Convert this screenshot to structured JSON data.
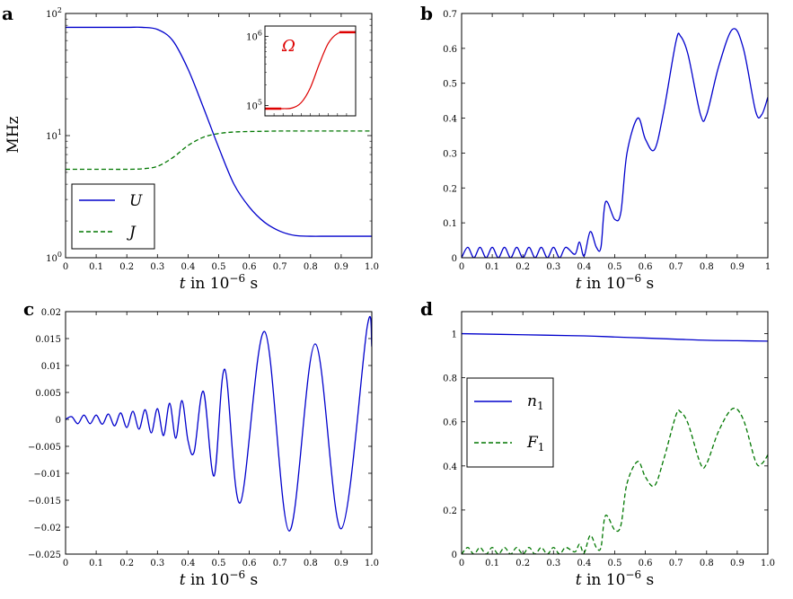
{
  "x_axis_label": "t in 10",
  "x_axis_exp": "−6",
  "x_axis_unit": " s",
  "chart_data": [
    {
      "panel": "a",
      "type": "line",
      "yscale": "log",
      "ylabel": "MHz",
      "xlim": [
        0,
        1.0
      ],
      "ylim": [
        1,
        100
      ],
      "xticks": [
        "0",
        "0.1",
        "0.2",
        "0.3",
        "0.4",
        "0.5",
        "0.6",
        "0.7",
        "0.8",
        "0.9",
        "1.0"
      ],
      "yticks": [
        {
          "base": "10",
          "exp": "0",
          "value": 1
        },
        {
          "base": "10",
          "exp": "1",
          "value": 10
        },
        {
          "base": "10",
          "exp": "2",
          "value": 100
        }
      ],
      "series": [
        {
          "name": "U",
          "color": "#0000cc",
          "style": "solid",
          "x": [
            0,
            0.1,
            0.2,
            0.25,
            0.3,
            0.35,
            0.4,
            0.45,
            0.5,
            0.55,
            0.6,
            0.65,
            0.7,
            0.75,
            0.8,
            0.85,
            0.9,
            0.95,
            1.0
          ],
          "y": [
            77,
            77,
            77,
            77,
            74,
            60,
            35,
            17,
            8,
            4,
            2.6,
            1.95,
            1.65,
            1.52,
            1.5,
            1.5,
            1.5,
            1.5,
            1.5
          ]
        },
        {
          "name": "J",
          "color": "#007700",
          "style": "dashed",
          "x": [
            0,
            0.1,
            0.2,
            0.25,
            0.3,
            0.35,
            0.4,
            0.45,
            0.5,
            0.55,
            0.6,
            0.65,
            0.7,
            0.8,
            0.9,
            1.0
          ],
          "y": [
            5.3,
            5.3,
            5.3,
            5.35,
            5.6,
            6.6,
            8.3,
            9.7,
            10.4,
            10.7,
            10.8,
            10.85,
            10.9,
            10.9,
            10.9,
            10.9
          ]
        }
      ],
      "legend": "lower-left",
      "inset": {
        "label": "Ω",
        "color": "#dd0000",
        "yticks": [
          {
            "base": "10",
            "exp": "5"
          },
          {
            "base": "10",
            "exp": "6"
          }
        ],
        "x": [
          0,
          0.2,
          0.3,
          0.4,
          0.5,
          0.6,
          0.7,
          0.8,
          0.9,
          1.0
        ],
        "y": [
          90000,
          90000,
          92000,
          110000,
          180000,
          400000,
          800000,
          1100000,
          1150000,
          1150000
        ]
      }
    },
    {
      "panel": "b",
      "type": "line",
      "xlim": [
        0,
        1.0
      ],
      "ylim": [
        0,
        0.7
      ],
      "xticks": [
        "0",
        "0.1",
        "0.2",
        "0.3",
        "0.4",
        "0.5",
        "0.6",
        "0.7",
        "0.8",
        "0.9",
        "1"
      ],
      "yticks": [
        "0",
        "0.1",
        "0.2",
        "0.3",
        "0.4",
        "0.5",
        "0.6",
        "0.7"
      ],
      "series": [
        {
          "color": "#0000cc",
          "style": "solid",
          "x": [
            0,
            0.02,
            0.04,
            0.06,
            0.08,
            0.1,
            0.12,
            0.14,
            0.16,
            0.18,
            0.2,
            0.22,
            0.24,
            0.26,
            0.28,
            0.3,
            0.32,
            0.34,
            0.37,
            0.385,
            0.4,
            0.42,
            0.44,
            0.455,
            0.47,
            0.5,
            0.52,
            0.54,
            0.575,
            0.6,
            0.63,
            0.66,
            0.7,
            0.715,
            0.74,
            0.78,
            0.8,
            0.84,
            0.885,
            0.92,
            0.96,
            0.98,
            1.0
          ],
          "y": [
            0,
            0.03,
            0,
            0.03,
            0,
            0.03,
            0,
            0.03,
            0,
            0.03,
            0,
            0.03,
            0,
            0.03,
            0,
            0.03,
            0,
            0.03,
            0.01,
            0.045,
            0.005,
            0.075,
            0.03,
            0.03,
            0.16,
            0.11,
            0.13,
            0.3,
            0.4,
            0.34,
            0.31,
            0.42,
            0.62,
            0.635,
            0.58,
            0.41,
            0.41,
            0.55,
            0.655,
            0.6,
            0.42,
            0.41,
            0.46
          ]
        }
      ]
    },
    {
      "panel": "c",
      "type": "line",
      "xlim": [
        0,
        1.0
      ],
      "ylim": [
        -0.025,
        0.02
      ],
      "xticks": [
        "0",
        "0.1",
        "0.2",
        "0.3",
        "0.4",
        "0.5",
        "0.6",
        "0.7",
        "0.8",
        "0.9",
        "1.0"
      ],
      "yticks": [
        "−0.025",
        "−0.02",
        "−0.015",
        "−0.01",
        "−0.005",
        "0",
        "0.005",
        "0.01",
        "0.015",
        "0.02"
      ],
      "series": [
        {
          "color": "#0000cc",
          "style": "solid",
          "x": [
            0,
            0.02,
            0.04,
            0.06,
            0.08,
            0.1,
            0.12,
            0.14,
            0.16,
            0.18,
            0.2,
            0.22,
            0.24,
            0.26,
            0.28,
            0.3,
            0.32,
            0.34,
            0.36,
            0.38,
            0.4,
            0.42,
            0.45,
            0.485,
            0.52,
            0.57,
            0.65,
            0.73,
            0.815,
            0.9,
            0.985,
            1.0
          ],
          "y": [
            0,
            0.0005,
            -0.0008,
            0.0008,
            -0.0008,
            0.0008,
            -0.0009,
            0.001,
            -0.0012,
            0.0012,
            -0.0015,
            0.0015,
            -0.0018,
            0.0018,
            -0.0025,
            0.002,
            -0.003,
            0.003,
            -0.0035,
            0.0035,
            -0.004,
            -0.006,
            0.0052,
            -0.0105,
            0.0093,
            -0.0155,
            0.0163,
            -0.0207,
            0.014,
            -0.0203,
            0.0172,
            0.0135
          ]
        }
      ]
    },
    {
      "panel": "d",
      "type": "line",
      "xlim": [
        0,
        1.0
      ],
      "ylim": [
        0,
        1.1
      ],
      "xticks": [
        "0",
        "0.1",
        "0.2",
        "0.3",
        "0.4",
        "0.5",
        "0.6",
        "0.7",
        "0.8",
        "0.9",
        "1.0"
      ],
      "yticks": [
        "0",
        "0.2",
        "0.4",
        "0.6",
        "0.8",
        "1"
      ],
      "series": [
        {
          "name": "n1",
          "color": "#0000cc",
          "style": "solid",
          "x": [
            0,
            0.2,
            0.4,
            0.5,
            0.6,
            0.7,
            0.8,
            0.9,
            1.0
          ],
          "y": [
            1.0,
            0.995,
            0.99,
            0.985,
            0.98,
            0.975,
            0.97,
            0.968,
            0.966
          ]
        },
        {
          "name": "F1",
          "color": "#007700",
          "style": "dashed",
          "x": [
            0,
            0.02,
            0.04,
            0.06,
            0.08,
            0.1,
            0.12,
            0.14,
            0.16,
            0.18,
            0.2,
            0.22,
            0.24,
            0.26,
            0.28,
            0.3,
            0.32,
            0.34,
            0.37,
            0.385,
            0.4,
            0.42,
            0.44,
            0.455,
            0.47,
            0.5,
            0.52,
            0.54,
            0.575,
            0.6,
            0.63,
            0.66,
            0.7,
            0.715,
            0.74,
            0.78,
            0.8,
            0.84,
            0.885,
            0.92,
            0.96,
            0.98,
            1.0
          ],
          "y": [
            0,
            0.03,
            0,
            0.03,
            0,
            0.03,
            0,
            0.03,
            0,
            0.03,
            0,
            0.03,
            0,
            0.03,
            0,
            0.03,
            0,
            0.03,
            0.01,
            0.045,
            0.005,
            0.085,
            0.03,
            0.03,
            0.175,
            0.11,
            0.13,
            0.32,
            0.42,
            0.35,
            0.31,
            0.43,
            0.63,
            0.645,
            0.59,
            0.41,
            0.41,
            0.56,
            0.66,
            0.61,
            0.42,
            0.41,
            0.45
          ]
        }
      ],
      "legend": "center-left"
    }
  ]
}
